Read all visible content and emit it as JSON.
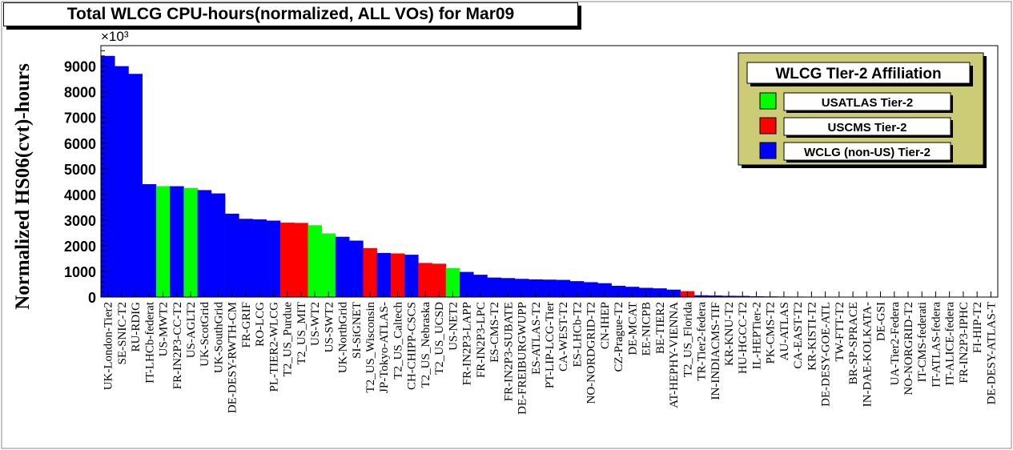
{
  "chart_data": {
    "type": "bar",
    "title": "Total WLCG CPU-hours(normalized, ALL VOs) for Mar09",
    "ylabel": "Normalized HS06(cvt)-hours",
    "y_multiplier_label": "×10³",
    "ylim": [
      0,
      9800
    ],
    "yticks": [
      0,
      1000,
      2000,
      3000,
      4000,
      5000,
      6000,
      7000,
      8000,
      9000
    ],
    "grid": false,
    "legend_position": "top-right",
    "legend": {
      "title": "WLCG TIer-2 Affiliation",
      "entries": [
        {
          "label": "USATLAS Tier-2",
          "color": "#00ff00"
        },
        {
          "label": "USCMS Tier-2",
          "color": "#ff0000"
        },
        {
          "label": "WCLG (non-US) Tier-2",
          "color": "#0000ff"
        }
      ]
    },
    "categories": [
      "UK-London-Tier2",
      "SE-SNIC-T2",
      "RU-RDIG",
      "IT-LHCb-federat",
      "US-MWT2",
      "FR-IN2P3-CC-T2",
      "US-AGLT2",
      "UK-ScotGrid",
      "UK-SouthGrid",
      "DE-DESY-RWTH-CM",
      "FR-GRIF",
      "RO-LCG",
      "PL-TIER2-WLCG",
      "T2_US_Purdue",
      "T2_US_MIT",
      "US-WT2",
      "US-SWT2",
      "UK-NorthGrid",
      "SI-SiGNET",
      "T2_US_Wisconsin",
      "JP-Tokyo-ATLAS-",
      "T2_US_Caltech",
      "CH-CHIPP-CSCS",
      "T2_US_Nebraska",
      "T2_US_UCSD",
      "US-NET2",
      "FR-IN2P3-LAPP",
      "FR-IN2P3-LPC",
      "ES-CMS-T2",
      "FR-IN2P3-SUBATE",
      "DE-FREIBURGWUPP",
      "ES-ATLAS-T2",
      "PT-LIP-LCG-Tier",
      "CA-WEST-T2",
      "ES-LHCb-T2",
      "NO-NORDGRID-T2",
      "CN-IHEP",
      "CZ-Prague-T2",
      "DE-MCAT",
      "EE-NICPB",
      "BE-TIER2",
      "AT-HEPHY-VIENNA",
      "T2_US_Florida",
      "TR-Tier2-federa",
      "IN-INDIACMS-TIF",
      "KR-KNU-T2",
      "HU-HGCC-T2",
      "IL-HEPTier-2",
      "PK-CMS-T2",
      "AU-ATLAS",
      "CA-EAST-T2",
      "KR-KISTI-T2",
      "DE-DESY-GOE-ATL",
      "TW-FTT-T2",
      "BR-SP-SPRACE",
      "IN-DAE-KOLKATA-",
      "DE-GSI",
      "UA-Tier2-Federa",
      "NO-NORGRID-T2",
      "IT-CMS-federati",
      "IT-ATLAS-federa",
      "IT-ALICE-federa",
      "FR-IN2P3-IPHC",
      "FI-HIP-T2",
      "DE-DESY-ATLAS-T"
    ],
    "values": [
      9400,
      9000,
      8700,
      4400,
      4320,
      4320,
      4250,
      4170,
      4040,
      3250,
      3050,
      3030,
      2980,
      2900,
      2890,
      2800,
      2480,
      2350,
      2200,
      1910,
      1720,
      1700,
      1650,
      1330,
      1300,
      1130,
      980,
      870,
      760,
      740,
      710,
      690,
      680,
      670,
      620,
      580,
      540,
      440,
      400,
      360,
      340,
      290,
      230,
      70,
      60,
      50,
      45,
      30,
      25,
      20,
      18,
      15,
      14,
      12,
      10,
      9,
      8,
      7,
      6,
      5,
      4,
      4,
      3,
      3,
      2
    ],
    "bar_colors": [
      "#0000ff",
      "#0000ff",
      "#0000ff",
      "#0000ff",
      "#00ff00",
      "#0000ff",
      "#00ff00",
      "#0000ff",
      "#0000ff",
      "#0000ff",
      "#0000ff",
      "#0000ff",
      "#0000ff",
      "#ff0000",
      "#ff0000",
      "#00ff00",
      "#00ff00",
      "#0000ff",
      "#0000ff",
      "#ff0000",
      "#0000ff",
      "#ff0000",
      "#0000ff",
      "#ff0000",
      "#ff0000",
      "#00ff00",
      "#0000ff",
      "#0000ff",
      "#0000ff",
      "#0000ff",
      "#0000ff",
      "#0000ff",
      "#0000ff",
      "#0000ff",
      "#0000ff",
      "#0000ff",
      "#0000ff",
      "#0000ff",
      "#0000ff",
      "#0000ff",
      "#0000ff",
      "#0000ff",
      "#ff0000",
      "#0000ff",
      "#0000ff",
      "#0000ff",
      "#0000ff",
      "#0000ff",
      "#0000ff",
      "#0000ff",
      "#0000ff",
      "#0000ff",
      "#0000ff",
      "#0000ff",
      "#0000ff",
      "#0000ff",
      "#0000ff",
      "#0000ff",
      "#0000ff",
      "#0000ff",
      "#0000ff",
      "#0000ff",
      "#0000ff",
      "#0000ff",
      "#0000ff"
    ],
    "legend_bg": "#cccc77"
  }
}
